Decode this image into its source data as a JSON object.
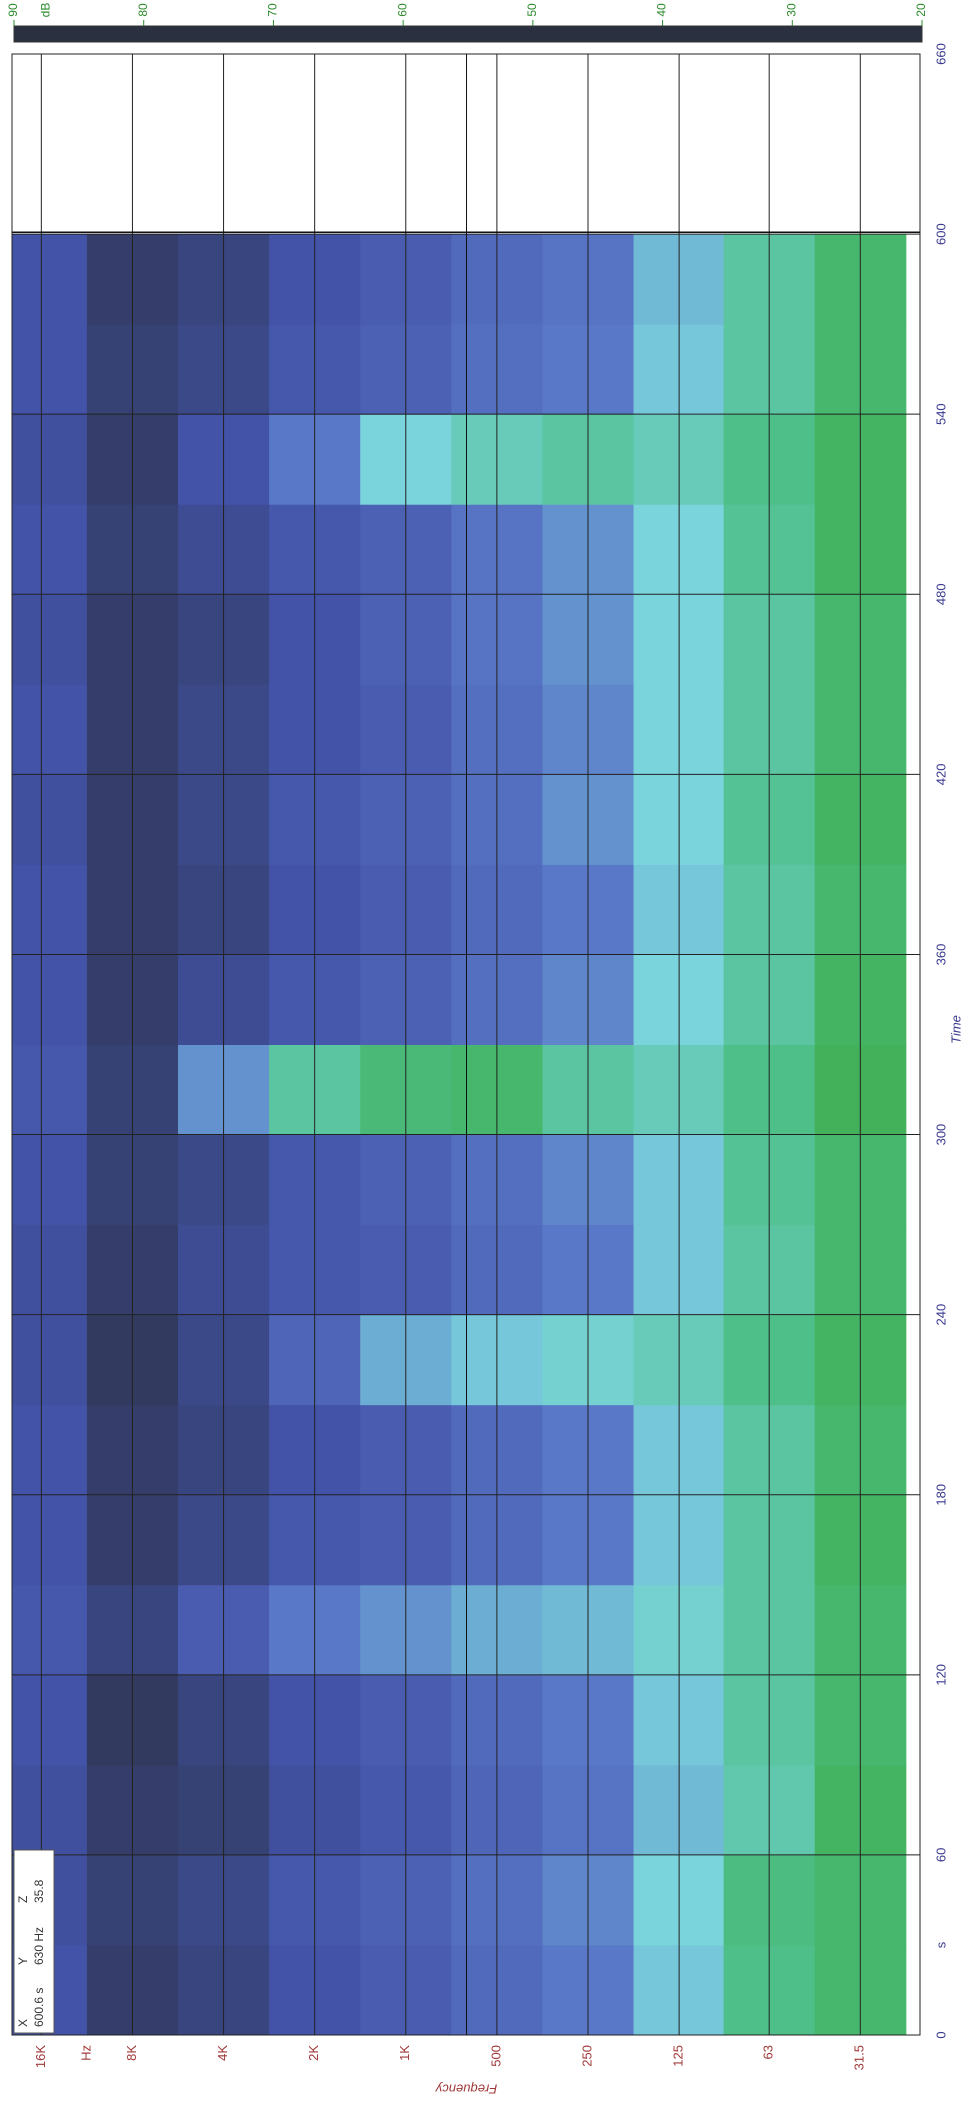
{
  "chart_data": {
    "type": "spectrogram",
    "x_axis_title": "Time",
    "x_unit": "s",
    "y_axis_title": "Frequency",
    "y_unit": "Hz",
    "colorbar_title": "dB",
    "xlim": [
      0,
      660
    ],
    "xticks": [
      0,
      60,
      120,
      180,
      240,
      300,
      360,
      420,
      480,
      540,
      600,
      660
    ],
    "ylim": [
      20000,
      20
    ],
    "log_y": true,
    "yticks": [
      {
        "value": 16000,
        "label": "16K"
      },
      {
        "value": 8000,
        "label": "8K"
      },
      {
        "value": 4000,
        "label": "4K"
      },
      {
        "value": 2000,
        "label": "2K"
      },
      {
        "value": 1000,
        "label": "1K"
      },
      500,
      250,
      125,
      63,
      31.5
    ],
    "clim": [
      90,
      20
    ],
    "cticks": [
      90,
      80,
      70,
      60,
      50,
      40,
      30,
      20
    ],
    "colorscale": [
      [
        20,
        "#2b3040"
      ],
      [
        30,
        "#4353a8"
      ],
      [
        38,
        "#5a78c8"
      ],
      [
        45,
        "#7ad4dc"
      ],
      [
        52,
        "#4fbf8a"
      ],
      [
        58,
        "#3fae50"
      ],
      [
        65,
        "#a8d040"
      ],
      [
        70,
        "#f0e840"
      ],
      [
        80,
        "#c04848"
      ],
      [
        90,
        "#f04a30"
      ]
    ],
    "grid": true,
    "time_bins": [
      0,
      30,
      60,
      90,
      120,
      150,
      180,
      210,
      240,
      270,
      300,
      330,
      360,
      390,
      420,
      450,
      480,
      510,
      540,
      570,
      600
    ],
    "z": [
      [
        30,
        29,
        29,
        30,
        31,
        30,
        30,
        29,
        29,
        30,
        31,
        30,
        30,
        29,
        30,
        29,
        30,
        29,
        30,
        30
      ],
      [
        24,
        25,
        24,
        23,
        26,
        24,
        24,
        23,
        24,
        25,
        25,
        24,
        24,
        24,
        24,
        24,
        25,
        24,
        25,
        24
      ],
      [
        26,
        27,
        25,
        26,
        32,
        27,
        26,
        27,
        28,
        27,
        40,
        28,
        26,
        27,
        27,
        26,
        28,
        30,
        27,
        26
      ],
      [
        30,
        31,
        29,
        30,
        38,
        31,
        30,
        34,
        31,
        31,
        50,
        31,
        30,
        31,
        30,
        30,
        31,
        38,
        31,
        30
      ],
      [
        32,
        33,
        31,
        32,
        40,
        32,
        32,
        42,
        32,
        33,
        54,
        33,
        32,
        33,
        32,
        33,
        33,
        45,
        33,
        32
      ],
      [
        35,
        36,
        34,
        35,
        42,
        35,
        35,
        44,
        35,
        36,
        55,
        36,
        35,
        36,
        36,
        37,
        37,
        48,
        36,
        35
      ],
      [
        38,
        39,
        37,
        38,
        43,
        38,
        38,
        46,
        38,
        39,
        50,
        39,
        38,
        40,
        39,
        40,
        40,
        50,
        38,
        37
      ],
      [
        44,
        45,
        43,
        44,
        46,
        44,
        44,
        48,
        44,
        44,
        48,
        45,
        44,
        45,
        45,
        45,
        45,
        48,
        44,
        43
      ],
      [
        52,
        53,
        49,
        50,
        50,
        50,
        50,
        52,
        50,
        51,
        52,
        50,
        50,
        51,
        50,
        50,
        51,
        52,
        50,
        50
      ],
      [
        55,
        55,
        56,
        55,
        55,
        56,
        55,
        56,
        55,
        55,
        57,
        56,
        55,
        56,
        55,
        55,
        56,
        56,
        55,
        55
      ]
    ],
    "cursor": {
      "x": {
        "name": "X",
        "value": 600.6,
        "label": "600.6 s"
      },
      "y": {
        "name": "Y",
        "value": 630,
        "label": "630 Hz"
      },
      "z": {
        "name": "Z",
        "value": 35.8,
        "label": "35.8"
      }
    }
  }
}
